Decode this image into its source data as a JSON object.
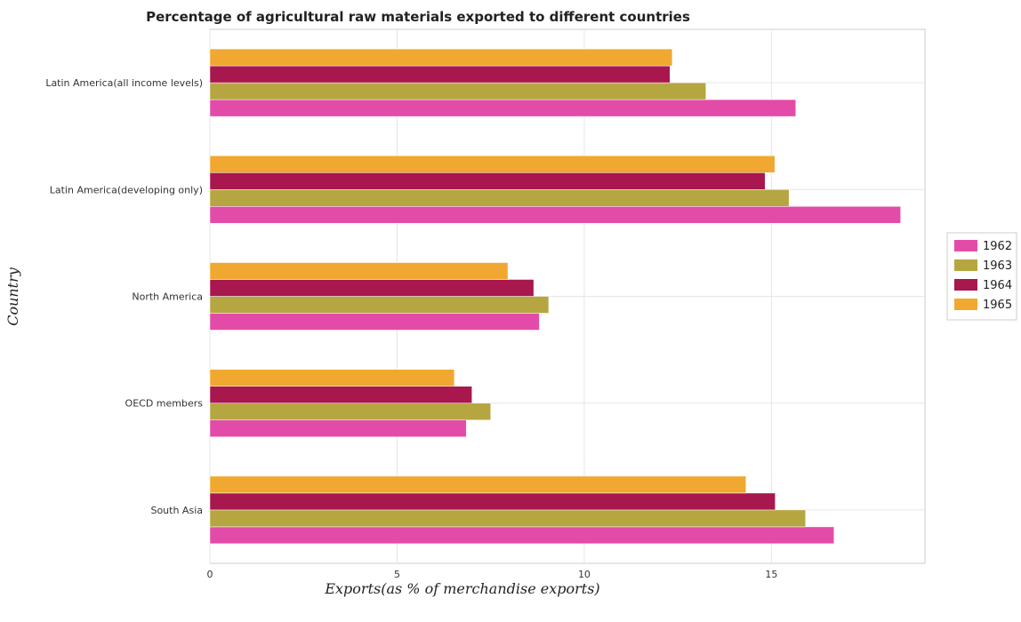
{
  "chart_data": {
    "type": "bar",
    "orientation": "horizontal",
    "title": "Percentage of agricultural raw materials exported to different countries",
    "xlabel": "Exports(as % of merchandise exports)",
    "ylabel": "Country",
    "categories": [
      "Latin America(all income levels)",
      "Latin America(developing only)",
      "North America",
      "OECD members",
      "South Asia"
    ],
    "series": [
      {
        "name": "1962",
        "color": "#e34ba9",
        "values": [
          15.65,
          18.45,
          8.8,
          6.85,
          16.67
        ]
      },
      {
        "name": "1963",
        "color": "#b5a642",
        "values": [
          13.25,
          15.47,
          9.05,
          7.5,
          15.91
        ]
      },
      {
        "name": "1964",
        "color": "#a8174e",
        "values": [
          12.29,
          14.83,
          8.65,
          7.0,
          15.1
        ]
      },
      {
        "name": "1965",
        "color": "#f0a830",
        "values": [
          12.35,
          15.09,
          7.96,
          6.53,
          14.32
        ]
      }
    ],
    "xlim": [
      0,
      19.1
    ],
    "xticks": [
      0,
      5,
      10,
      15
    ],
    "grid": true,
    "legend_position": "right"
  }
}
